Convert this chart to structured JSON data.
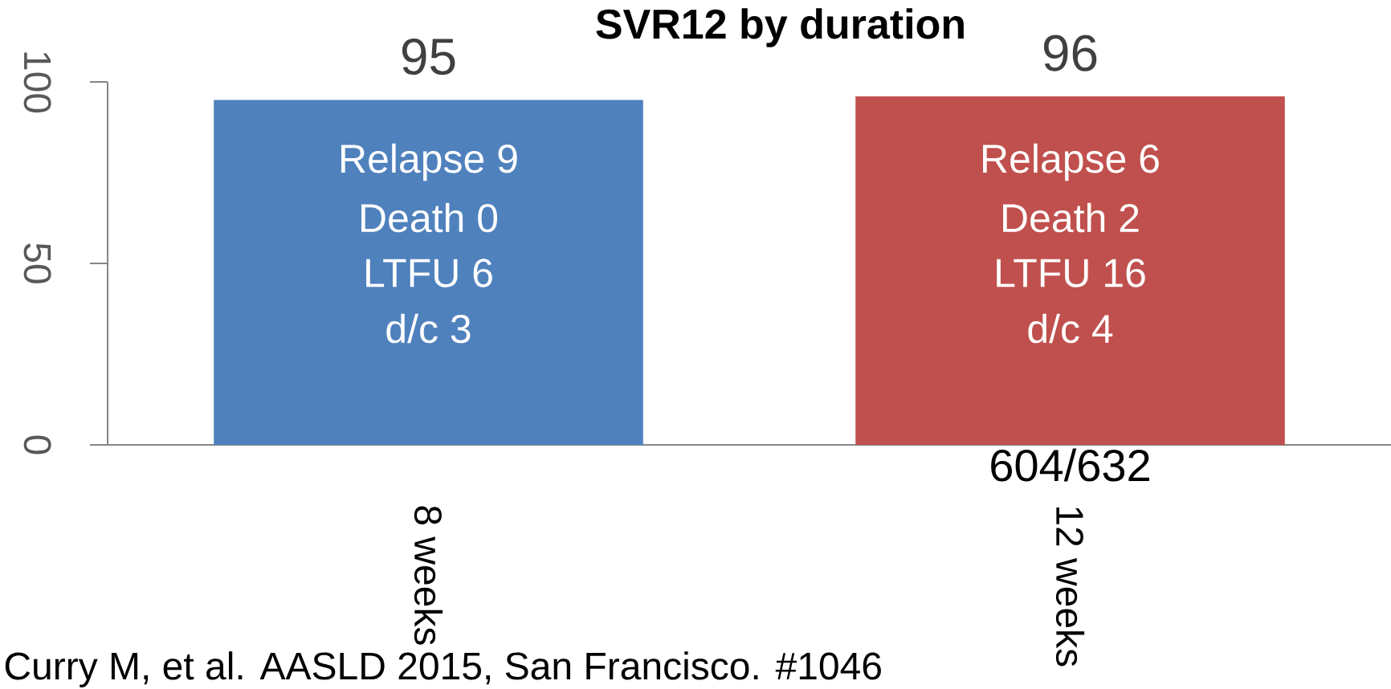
{
  "chart_data": {
    "type": "bar",
    "title": "SVR12 by duration",
    "categories": [
      "8 weeks",
      "12 weeks"
    ],
    "values": [
      95,
      96
    ],
    "colors": [
      "#4f81bd",
      "#c0504d"
    ],
    "ylim": [
      0,
      100
    ],
    "yticks": [
      0,
      50,
      100
    ],
    "data_labels": true,
    "annotations": [
      "Relapse 9",
      "Death 0",
      "LTFU 6",
      "d/c 3",
      "Relapse 6",
      "Death 2",
      "LTFU 16",
      "d/c 4",
      "604/632",
      "Curry M, et al. AASLD 2015, San Francisco. #1046"
    ]
  }
}
